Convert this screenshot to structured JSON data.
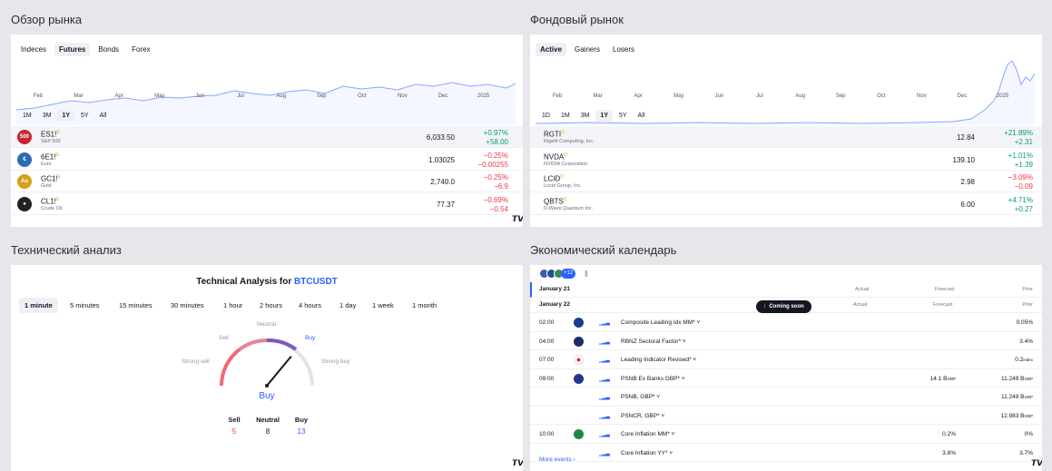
{
  "market_overview": {
    "title": "Обзор рынка",
    "tabs": [
      "Indeces",
      "Futures",
      "Bonds",
      "Forex"
    ],
    "active_tab": "Futures",
    "months": [
      "Feb",
      "Mar",
      "Apr",
      "May",
      "Jun",
      "Jul",
      "Aug",
      "Sep",
      "Oct",
      "Nov",
      "Dec",
      "2025"
    ],
    "ranges": [
      "1M",
      "3M",
      "1Y",
      "5Y",
      "All"
    ],
    "active_range": "1Y",
    "rows": [
      {
        "badge": "500",
        "symbol": "ES1!",
        "desc": "S&P 500",
        "last": "6,033.50",
        "pct": "+0.97%",
        "abs": "+58.00",
        "dir": "pos",
        "color": "#c9252f"
      },
      {
        "badge": "€",
        "symbol": "6E1!",
        "desc": "Euro",
        "last": "1.03025",
        "pct": "−0.25%",
        "abs": "−0.00255",
        "dir": "neg",
        "color": "#2f6bb5"
      },
      {
        "badge": "Au",
        "symbol": "GC1!",
        "desc": "Gold",
        "last": "2,740.0",
        "pct": "−0.25%",
        "abs": "−6.9",
        "dir": "neg",
        "color": "#d4a017"
      },
      {
        "badge": "●",
        "symbol": "CL1!",
        "desc": "Crude Oil",
        "last": "77.37",
        "pct": "−0.69%",
        "abs": "−0.54",
        "dir": "neg",
        "color": "#222"
      }
    ]
  },
  "stock_market": {
    "title": "Фондовый рынок",
    "tabs": [
      "Active",
      "Gainers",
      "Losers"
    ],
    "active_tab": "Active",
    "months": [
      "Feb",
      "Mar",
      "Apr",
      "May",
      "Jun",
      "Jul",
      "Aug",
      "Sep",
      "Oct",
      "Nov",
      "Dec",
      "2025"
    ],
    "ranges": [
      "1D",
      "1M",
      "3M",
      "1Y",
      "5Y",
      "All"
    ],
    "active_range": "1Y",
    "rows": [
      {
        "symbol": "RGTI",
        "desc": "Rigetti Computing, Inc.",
        "last": "12.84",
        "pct": "+21.89%",
        "abs": "+2.31",
        "dir": "pos"
      },
      {
        "symbol": "NVDA",
        "desc": "NVIDIA Corporation",
        "last": "139.10",
        "pct": "+1.01%",
        "abs": "+1.39",
        "dir": "pos"
      },
      {
        "symbol": "LCID",
        "desc": "Lucid Group, Inc.",
        "last": "2.98",
        "pct": "−3.09%",
        "abs": "−0.09",
        "dir": "neg"
      },
      {
        "symbol": "QBTS",
        "desc": "D-Wave Quantum Inc.",
        "last": "6.00",
        "pct": "+4.71%",
        "abs": "+0.27",
        "dir": "pos"
      }
    ]
  },
  "technical": {
    "title": "Технический анализ",
    "heading_prefix": "Technical Analysis for ",
    "symbol": "BTCUSDT",
    "intervals": [
      "1 minute",
      "5 minutes",
      "15 minutes",
      "30 minutes",
      "1 hour",
      "2 hours",
      "4 hours",
      "1 day",
      "1 week",
      "1 month"
    ],
    "active_interval": "1 minute",
    "gauge": {
      "neutral": "Neutral",
      "sell": "Sell",
      "buy": "Buy",
      "strong_sell": "Strong sell",
      "strong_buy": "Strong buy",
      "result": "Buy",
      "needle_fraction": 0.72
    },
    "counts": [
      {
        "label": "Sell",
        "value": "5",
        "dir": "neg"
      },
      {
        "label": "Neutral",
        "value": "8",
        "dir": "neutral"
      },
      {
        "label": "Buy",
        "value": "13",
        "dir": "blue"
      }
    ]
  },
  "calendar": {
    "title": "Экономический календарь",
    "more_badge": "+12",
    "col_actual": "Actual",
    "col_forecast": "Forecast",
    "col_prior": "Prior",
    "day1": "January 21",
    "day2": "January 22",
    "coming_soon": "Coming soon",
    "events": [
      {
        "time": "02:00",
        "flag": "au",
        "name": "Composite Leading Idx MM*",
        "forecast": "",
        "prior": "0.05%"
      },
      {
        "time": "04:00",
        "flag": "nz",
        "name": "RBNZ Sectoral Factor*",
        "forecast": "",
        "prior": "3.4%"
      },
      {
        "time": "07:00",
        "flag": "jp",
        "name": "Leading Indicator Revised*",
        "forecast": "",
        "prior": "0.2",
        "prior_unit": "index"
      },
      {
        "time": "09:00",
        "flag": "gb",
        "name": "PSNB Ex Banks GBP*",
        "forecast": "14.1 B",
        "forecast_unit": "GBP",
        "prior": "11.249 B",
        "prior_unit": "GBP"
      },
      {
        "time": "",
        "flag": "",
        "name": "PSNB, GBP*",
        "forecast": "",
        "prior": "11.249 B",
        "prior_unit": "GBP"
      },
      {
        "time": "",
        "flag": "",
        "name": "PSNCR, GBP*",
        "forecast": "",
        "prior": "12.983 B",
        "prior_unit": "GBP"
      },
      {
        "time": "10:00",
        "flag": "za",
        "name": "Core Inflation MM*",
        "forecast": "0.2%",
        "prior": "0%"
      },
      {
        "time": "",
        "flag": "",
        "name": "Core Inflation YY*",
        "forecast": "3.8%",
        "prior": "3.7%"
      }
    ],
    "more_events": "More events"
  }
}
